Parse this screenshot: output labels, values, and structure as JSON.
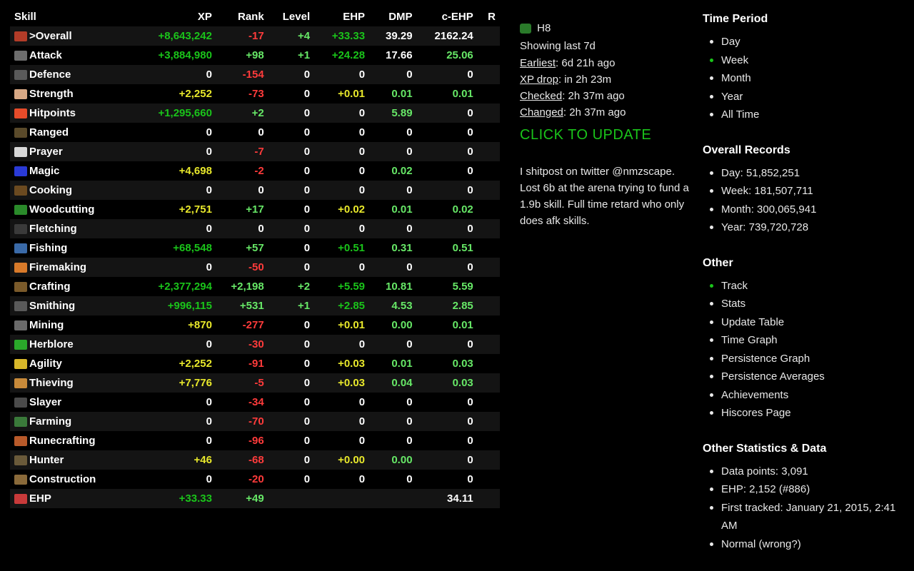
{
  "table": {
    "headers": [
      "Skill",
      "XP",
      "Rank",
      "Level",
      "EHP",
      "DMP",
      "c-EHP",
      "R"
    ],
    "iconColors": {
      "Overall": "#b33c28",
      "Attack": "#6d6d6d",
      "Defence": "#5a5a5a",
      "Strength": "#d8a884",
      "Hitpoints": "#e64b2a",
      "Ranged": "#5a4a2a",
      "Prayer": "#d8d8d8",
      "Magic": "#2a3ad6",
      "Cooking": "#6b4a20",
      "Woodcutting": "#2a8a2a",
      "Fletching": "#3a3a3a",
      "Fishing": "#3a6aa8",
      "Firemaking": "#d87a2a",
      "Crafting": "#7a5a2a",
      "Smithing": "#5a5a5a",
      "Mining": "#6a6a6a",
      "Herblore": "#2aa82a",
      "Agility": "#d8b82a",
      "Thieving": "#c88a3a",
      "Slayer": "#4a4a4a",
      "Farming": "#3a7a3a",
      "Runecrafting": "#b85a2a",
      "Hunter": "#6a5a3a",
      "Construction": "#8a6a3a",
      "EHP": "#c83a3a"
    },
    "rows": [
      {
        "name": ">Overall",
        "key": "Overall",
        "xp": [
          "+8,643,242",
          "green1"
        ],
        "rank": [
          "-17",
          "red"
        ],
        "level": [
          "+4",
          "green2"
        ],
        "ehp": [
          "+33.33",
          "green1"
        ],
        "dmp": [
          "39.29",
          "white"
        ],
        "cehp": [
          "2162.24",
          "white"
        ],
        "r": ""
      },
      {
        "name": "Attack",
        "key": "Attack",
        "xp": [
          "+3,884,980",
          "green1"
        ],
        "rank": [
          "+98",
          "green2"
        ],
        "level": [
          "+1",
          "green2"
        ],
        "ehp": [
          "+24.28",
          "green1"
        ],
        "dmp": [
          "17.66",
          "white"
        ],
        "cehp": [
          "25.06",
          "green2"
        ],
        "r": ""
      },
      {
        "name": "Defence",
        "key": "Defence",
        "xp": [
          "0",
          "white"
        ],
        "rank": [
          "-154",
          "red"
        ],
        "level": [
          "0",
          "white"
        ],
        "ehp": [
          "0",
          "white"
        ],
        "dmp": [
          "0",
          "white"
        ],
        "cehp": [
          "0",
          "white"
        ],
        "r": ""
      },
      {
        "name": "Strength",
        "key": "Strength",
        "xp": [
          "+2,252",
          "yellow"
        ],
        "rank": [
          "-73",
          "red"
        ],
        "level": [
          "0",
          "white"
        ],
        "ehp": [
          "+0.01",
          "yellow"
        ],
        "dmp": [
          "0.01",
          "green2"
        ],
        "cehp": [
          "0.01",
          "green2"
        ],
        "r": ""
      },
      {
        "name": "Hitpoints",
        "key": "Hitpoints",
        "xp": [
          "+1,295,660",
          "green1"
        ],
        "rank": [
          "+2",
          "green2"
        ],
        "level": [
          "0",
          "white"
        ],
        "ehp": [
          "0",
          "white"
        ],
        "dmp": [
          "5.89",
          "green2"
        ],
        "cehp": [
          "0",
          "white"
        ],
        "r": ""
      },
      {
        "name": "Ranged",
        "key": "Ranged",
        "xp": [
          "0",
          "white"
        ],
        "rank": [
          "0",
          "white"
        ],
        "level": [
          "0",
          "white"
        ],
        "ehp": [
          "0",
          "white"
        ],
        "dmp": [
          "0",
          "white"
        ],
        "cehp": [
          "0",
          "white"
        ],
        "r": ""
      },
      {
        "name": "Prayer",
        "key": "Prayer",
        "xp": [
          "0",
          "white"
        ],
        "rank": [
          "-7",
          "red"
        ],
        "level": [
          "0",
          "white"
        ],
        "ehp": [
          "0",
          "white"
        ],
        "dmp": [
          "0",
          "white"
        ],
        "cehp": [
          "0",
          "white"
        ],
        "r": ""
      },
      {
        "name": "Magic",
        "key": "Magic",
        "xp": [
          "+4,698",
          "yellow"
        ],
        "rank": [
          "-2",
          "red"
        ],
        "level": [
          "0",
          "white"
        ],
        "ehp": [
          "0",
          "white"
        ],
        "dmp": [
          "0.02",
          "green2"
        ],
        "cehp": [
          "0",
          "white"
        ],
        "r": ""
      },
      {
        "name": "Cooking",
        "key": "Cooking",
        "xp": [
          "0",
          "white"
        ],
        "rank": [
          "0",
          "white"
        ],
        "level": [
          "0",
          "white"
        ],
        "ehp": [
          "0",
          "white"
        ],
        "dmp": [
          "0",
          "white"
        ],
        "cehp": [
          "0",
          "white"
        ],
        "r": ""
      },
      {
        "name": "Woodcutting",
        "key": "Woodcutting",
        "xp": [
          "+2,751",
          "yellow"
        ],
        "rank": [
          "+17",
          "green2"
        ],
        "level": [
          "0",
          "white"
        ],
        "ehp": [
          "+0.02",
          "yellow"
        ],
        "dmp": [
          "0.01",
          "green2"
        ],
        "cehp": [
          "0.02",
          "green2"
        ],
        "r": ""
      },
      {
        "name": "Fletching",
        "key": "Fletching",
        "xp": [
          "0",
          "white"
        ],
        "rank": [
          "0",
          "white"
        ],
        "level": [
          "0",
          "white"
        ],
        "ehp": [
          "0",
          "white"
        ],
        "dmp": [
          "0",
          "white"
        ],
        "cehp": [
          "0",
          "white"
        ],
        "r": ""
      },
      {
        "name": "Fishing",
        "key": "Fishing",
        "xp": [
          "+68,548",
          "green1"
        ],
        "rank": [
          "+57",
          "green2"
        ],
        "level": [
          "0",
          "white"
        ],
        "ehp": [
          "+0.51",
          "green1"
        ],
        "dmp": [
          "0.31",
          "green2"
        ],
        "cehp": [
          "0.51",
          "green2"
        ],
        "r": ""
      },
      {
        "name": "Firemaking",
        "key": "Firemaking",
        "xp": [
          "0",
          "white"
        ],
        "rank": [
          "-50",
          "red"
        ],
        "level": [
          "0",
          "white"
        ],
        "ehp": [
          "0",
          "white"
        ],
        "dmp": [
          "0",
          "white"
        ],
        "cehp": [
          "0",
          "white"
        ],
        "r": ""
      },
      {
        "name": "Crafting",
        "key": "Crafting",
        "xp": [
          "+2,377,294",
          "green1"
        ],
        "rank": [
          "+2,198",
          "green2"
        ],
        "level": [
          "+2",
          "green2"
        ],
        "ehp": [
          "+5.59",
          "green1"
        ],
        "dmp": [
          "10.81",
          "green2"
        ],
        "cehp": [
          "5.59",
          "green2"
        ],
        "r": ""
      },
      {
        "name": "Smithing",
        "key": "Smithing",
        "xp": [
          "+996,115",
          "green1"
        ],
        "rank": [
          "+531",
          "green2"
        ],
        "level": [
          "+1",
          "green2"
        ],
        "ehp": [
          "+2.85",
          "green1"
        ],
        "dmp": [
          "4.53",
          "green2"
        ],
        "cehp": [
          "2.85",
          "green2"
        ],
        "r": ""
      },
      {
        "name": "Mining",
        "key": "Mining",
        "xp": [
          "+870",
          "yellow"
        ],
        "rank": [
          "-277",
          "red"
        ],
        "level": [
          "0",
          "white"
        ],
        "ehp": [
          "+0.01",
          "yellow"
        ],
        "dmp": [
          "0.00",
          "green2"
        ],
        "cehp": [
          "0.01",
          "green2"
        ],
        "r": ""
      },
      {
        "name": "Herblore",
        "key": "Herblore",
        "xp": [
          "0",
          "white"
        ],
        "rank": [
          "-30",
          "red"
        ],
        "level": [
          "0",
          "white"
        ],
        "ehp": [
          "0",
          "white"
        ],
        "dmp": [
          "0",
          "white"
        ],
        "cehp": [
          "0",
          "white"
        ],
        "r": ""
      },
      {
        "name": "Agility",
        "key": "Agility",
        "xp": [
          "+2,252",
          "yellow"
        ],
        "rank": [
          "-91",
          "red"
        ],
        "level": [
          "0",
          "white"
        ],
        "ehp": [
          "+0.03",
          "yellow"
        ],
        "dmp": [
          "0.01",
          "green2"
        ],
        "cehp": [
          "0.03",
          "green2"
        ],
        "r": ""
      },
      {
        "name": "Thieving",
        "key": "Thieving",
        "xp": [
          "+7,776",
          "yellow"
        ],
        "rank": [
          "-5",
          "red"
        ],
        "level": [
          "0",
          "white"
        ],
        "ehp": [
          "+0.03",
          "yellow"
        ],
        "dmp": [
          "0.04",
          "green2"
        ],
        "cehp": [
          "0.03",
          "green2"
        ],
        "r": ""
      },
      {
        "name": "Slayer",
        "key": "Slayer",
        "xp": [
          "0",
          "white"
        ],
        "rank": [
          "-34",
          "red"
        ],
        "level": [
          "0",
          "white"
        ],
        "ehp": [
          "0",
          "white"
        ],
        "dmp": [
          "0",
          "white"
        ],
        "cehp": [
          "0",
          "white"
        ],
        "r": ""
      },
      {
        "name": "Farming",
        "key": "Farming",
        "xp": [
          "0",
          "white"
        ],
        "rank": [
          "-70",
          "red"
        ],
        "level": [
          "0",
          "white"
        ],
        "ehp": [
          "0",
          "white"
        ],
        "dmp": [
          "0",
          "white"
        ],
        "cehp": [
          "0",
          "white"
        ],
        "r": ""
      },
      {
        "name": "Runecrafting",
        "key": "Runecrafting",
        "xp": [
          "0",
          "white"
        ],
        "rank": [
          "-96",
          "red"
        ],
        "level": [
          "0",
          "white"
        ],
        "ehp": [
          "0",
          "white"
        ],
        "dmp": [
          "0",
          "white"
        ],
        "cehp": [
          "0",
          "white"
        ],
        "r": ""
      },
      {
        "name": "Hunter",
        "key": "Hunter",
        "xp": [
          "+46",
          "yellow"
        ],
        "rank": [
          "-68",
          "red"
        ],
        "level": [
          "0",
          "white"
        ],
        "ehp": [
          "+0.00",
          "yellow"
        ],
        "dmp": [
          "0.00",
          "green2"
        ],
        "cehp": [
          "0",
          "white"
        ],
        "r": ""
      },
      {
        "name": "Construction",
        "key": "Construction",
        "xp": [
          "0",
          "white"
        ],
        "rank": [
          "-20",
          "red"
        ],
        "level": [
          "0",
          "white"
        ],
        "ehp": [
          "0",
          "white"
        ],
        "dmp": [
          "0",
          "white"
        ],
        "cehp": [
          "0",
          "white"
        ],
        "r": ""
      },
      {
        "name": "EHP",
        "key": "EHP",
        "xp": [
          "+33.33",
          "green1"
        ],
        "rank": [
          "+49",
          "green2"
        ],
        "level": [
          "",
          ""
        ],
        "ehp": [
          "",
          ""
        ],
        "dmp": [
          "",
          ""
        ],
        "cehp": [
          "34.11",
          "white"
        ],
        "r": ""
      }
    ]
  },
  "mid": {
    "playerName": "H8",
    "showing": "Showing last 7d",
    "earliestLabel": "Earliest",
    "earliestValue": "6d 21h ago",
    "xpDropLabel": "XP drop",
    "xpDropValue": "in 2h 23m",
    "checkedLabel": "Checked",
    "checkedValue": "2h 37m ago",
    "changedLabel": "Changed",
    "changedValue": "2h 37m ago",
    "updateLabel": "CLICK TO UPDATE",
    "bio": "I shitpost on twitter @nmzscape. Lost 6b at the arena trying to fund a 1.9b skill. Full time retard who only does afk skills."
  },
  "right": {
    "timePeriod": {
      "title": "Time Period",
      "items": [
        "Day",
        "Week",
        "Month",
        "Year",
        "All Time"
      ],
      "activeIndex": 1
    },
    "overallRecords": {
      "title": "Overall Records",
      "items": [
        "Day: 51,852,251",
        "Week: 181,507,711",
        "Month: 300,065,941",
        "Year: 739,720,728"
      ]
    },
    "other": {
      "title": "Other",
      "items": [
        "Track",
        "Stats",
        "Update Table",
        "Time Graph",
        "Persistence Graph",
        "Persistence Averages",
        "Achievements",
        "Hiscores Page"
      ],
      "activeIndex": 0
    },
    "stats": {
      "title": "Other Statistics & Data",
      "items": [
        "Data points: 3,091",
        "EHP: 2,152 (#886)",
        "First tracked: January 21, 2015, 2:41 AM",
        "Normal (wrong?)"
      ]
    }
  }
}
